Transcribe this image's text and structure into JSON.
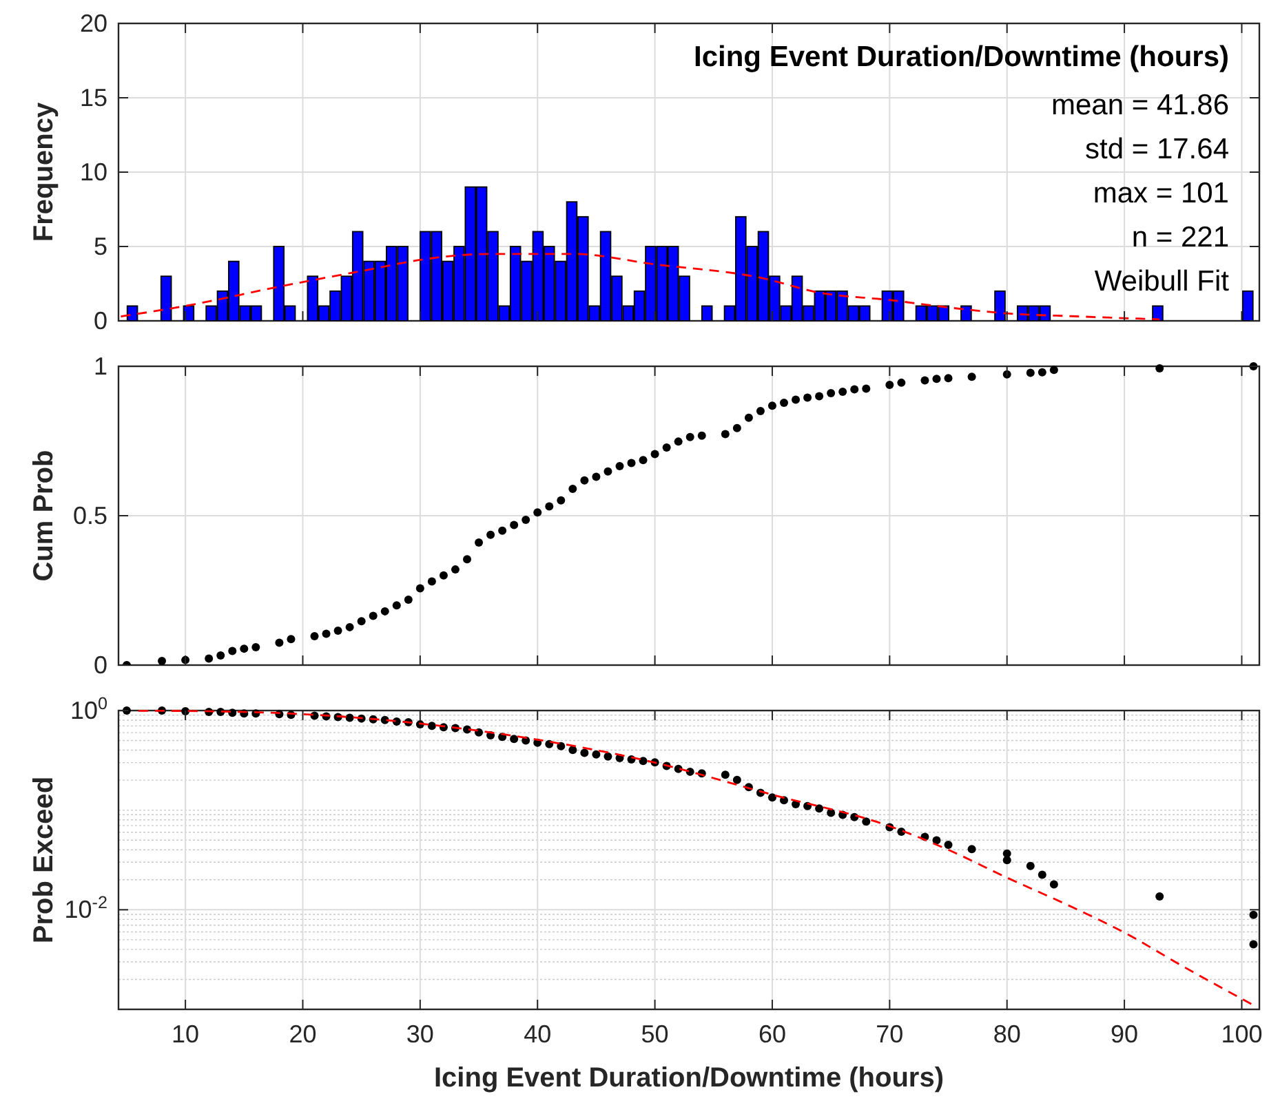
{
  "chart_data": [
    {
      "type": "histogram",
      "title": "Icing Event Duration/Downtime (hours)",
      "ylabel": "Frequency",
      "annotations": [
        "mean = 41.86",
        "std = 17.64",
        "max = 101",
        "n = 221",
        "Weibull Fit"
      ],
      "xlim": [
        4.3,
        101.5
      ],
      "xticks": [
        10,
        20,
        30,
        40,
        50,
        60,
        70,
        80,
        90,
        100
      ],
      "ylim": [
        0,
        20
      ],
      "yticks": [
        0,
        5,
        10,
        15,
        20
      ],
      "grid": true,
      "tick_labels": "y",
      "series": [
        {
          "color": "#0000ff",
          "bins": [
            5,
            5.96,
            6.92,
            7.88,
            8.84,
            9.8,
            10.76,
            11.72,
            12.68,
            13.64,
            14.6,
            15.56,
            16.52,
            17.48,
            18.44,
            19.4,
            20.36,
            21.32,
            22.28,
            23.24,
            24.2,
            25.16,
            26.12,
            27.08,
            28.04,
            29,
            29.96,
            30.92,
            31.88,
            32.84,
            33.8,
            34.76,
            35.72,
            36.68,
            37.64,
            38.6,
            39.56,
            40.52,
            41.48,
            42.44,
            43.4,
            44.36,
            45.32,
            46.28,
            47.24,
            48.2,
            49.16,
            50.12,
            51.08,
            52.04,
            53,
            53.96,
            54.92,
            55.88,
            56.84,
            57.8,
            58.76,
            59.72,
            60.68,
            61.64,
            62.6,
            63.56,
            64.52,
            65.48,
            66.44,
            67.4,
            68.36,
            69.32,
            70.28,
            71.24,
            72.2,
            73.16,
            74.12,
            75.08,
            76.04,
            77,
            77.96,
            78.92,
            79.88,
            80.84,
            81.8,
            82.76,
            83.72,
            84.68,
            85.64,
            86.6,
            87.56,
            88.52,
            89.48,
            90.44,
            91.4,
            92.36,
            93.32,
            94.28,
            95.24,
            96.2,
            97.16,
            98.12,
            99.08,
            100.04,
            101
          ],
          "values": [
            1,
            0,
            0,
            3,
            0,
            1,
            0,
            1,
            2,
            4,
            1,
            1,
            0,
            5,
            1,
            0,
            3,
            1,
            2,
            3,
            6,
            4,
            4,
            5,
            5,
            0,
            6,
            6,
            4,
            5,
            9,
            9,
            6,
            1,
            5,
            4,
            6,
            5,
            4,
            8,
            7,
            1,
            6,
            3,
            1,
            2,
            5,
            5,
            5,
            3,
            0,
            1,
            0,
            1,
            7,
            5,
            6,
            3,
            1,
            3,
            1,
            2,
            2,
            2,
            1,
            1,
            0,
            2,
            2,
            0,
            1,
            1,
            1,
            0,
            1,
            0,
            0,
            2,
            0,
            1,
            1,
            1,
            0,
            0,
            0,
            0,
            0,
            0,
            0,
            0,
            0,
            1,
            0,
            0,
            0,
            0,
            0,
            0,
            0,
            2
          ]
        },
        {
          "type": "line",
          "color": "#ff0000",
          "line_style": "dashed",
          "x": [
            4.5,
            10,
            18,
            26,
            30,
            36,
            43,
            50,
            59,
            64,
            70,
            75,
            80,
            86,
            93
          ],
          "values": [
            0.3,
            1,
            2.3,
            3.5,
            4.1,
            4.5,
            4.5,
            3.8,
            2.9,
            1.9,
            1.4,
            0.9,
            0.5,
            0.3,
            0.1
          ]
        }
      ]
    },
    {
      "type": "scatter",
      "ylabel": "Cum Prob",
      "xlim": [
        4.3,
        101.5
      ],
      "xticks": [
        10,
        20,
        30,
        40,
        50,
        60,
        70,
        80,
        90,
        100
      ],
      "ylim": [
        0,
        1
      ],
      "yticks": [
        0,
        0.5,
        1
      ],
      "grid": true,
      "tick_labels": "y",
      "series": [
        {
          "marker": "circle",
          "color": "#000000",
          "x": [
            5,
            8,
            10,
            12,
            13,
            14,
            15,
            16,
            18,
            19,
            21,
            22,
            23,
            24,
            25,
            26,
            27,
            28,
            29,
            30,
            31,
            32,
            33,
            34,
            35,
            36,
            37,
            38,
            39,
            40,
            41,
            42,
            43,
            44,
            45,
            46,
            47,
            48,
            49,
            50,
            51,
            52,
            53,
            54,
            56,
            57,
            58,
            59,
            60,
            61,
            62,
            63,
            64,
            65,
            66,
            67,
            68,
            70,
            71,
            73,
            74,
            75,
            77,
            80,
            82,
            83,
            84,
            93,
            101
          ],
          "values": [
            0,
            0.014,
            0.017,
            0.022,
            0.032,
            0.047,
            0.055,
            0.06,
            0.075,
            0.087,
            0.097,
            0.105,
            0.115,
            0.127,
            0.147,
            0.165,
            0.18,
            0.2,
            0.219,
            0.257,
            0.28,
            0.3,
            0.32,
            0.354,
            0.41,
            0.436,
            0.45,
            0.469,
            0.486,
            0.511,
            0.531,
            0.551,
            0.59,
            0.618,
            0.63,
            0.648,
            0.666,
            0.676,
            0.686,
            0.706,
            0.728,
            0.748,
            0.763,
            0.768,
            0.773,
            0.793,
            0.828,
            0.85,
            0.868,
            0.878,
            0.888,
            0.895,
            0.9,
            0.91,
            0.915,
            0.923,
            0.925,
            0.938,
            0.945,
            0.953,
            0.958,
            0.96,
            0.965,
            0.973,
            0.978,
            0.98,
            0.988,
            0.993,
            1
          ]
        }
      ]
    },
    {
      "type": "scatter",
      "xlabel": "Icing Event Duration/Downtime (hours)",
      "ylabel": "Prob Exceed",
      "xlim": [
        4.3,
        101.5
      ],
      "xticks": [
        10,
        20,
        30,
        40,
        50,
        60,
        70,
        80,
        90,
        100
      ],
      "ylim": [
        0.001,
        1
      ],
      "yticks": [
        {
          "value": 0.01,
          "label": "10$^{-2}$"
        },
        {
          "value": 1,
          "label": "10$^{0}$"
        }
      ],
      "log": "y",
      "grid": true,
      "series": [
        {
          "marker": "circle",
          "color": "#000000",
          "x": [
            5,
            8,
            10,
            12,
            13,
            14,
            15,
            16,
            18,
            19,
            21,
            22,
            23,
            24,
            25,
            26,
            27,
            28,
            29,
            30,
            31,
            32,
            33,
            34,
            35,
            36,
            37,
            38,
            39,
            40,
            41,
            42,
            43,
            44,
            45,
            46,
            47,
            48,
            49,
            50,
            51,
            52,
            53,
            54,
            56,
            57,
            58,
            59,
            60,
            61,
            62,
            63,
            64,
            65,
            66,
            67,
            68,
            70,
            71,
            73,
            74,
            75,
            77,
            80,
            80,
            82,
            83,
            84,
            93,
            101,
            101
          ],
          "values": [
            1,
            1,
            0.983,
            0.967,
            0.967,
            0.951,
            0.935,
            0.935,
            0.919,
            0.904,
            0.889,
            0.874,
            0.859,
            0.845,
            0.831,
            0.817,
            0.803,
            0.776,
            0.763,
            0.726,
            0.702,
            0.679,
            0.667,
            0.645,
            0.603,
            0.564,
            0.545,
            0.518,
            0.501,
            0.476,
            0.46,
            0.438,
            0.402,
            0.376,
            0.363,
            0.345,
            0.334,
            0.323,
            0.312,
            0.302,
            0.278,
            0.26,
            0.243,
            0.234,
            0.227,
            0.201,
            0.17,
            0.149,
            0.134,
            0.126,
            0.115,
            0.11,
            0.104,
            0.094,
            0.0896,
            0.0852,
            0.0769,
            0.0673,
            0.0608,
            0.054,
            0.0497,
            0.0449,
            0.0406,
            0.0367,
            0.0315,
            0.0275,
            0.0225,
            0.018,
            0.0136,
            0.0089,
            0.0045
          ]
        },
        {
          "type": "line",
          "color": "#ff0000",
          "line_style": "dashed",
          "x": [
            6,
            10,
            20,
            30,
            40,
            50,
            60,
            70,
            75,
            80,
            85,
            90,
            95,
            101
          ],
          "values": [
            0.995,
            0.99,
            0.92,
            0.74,
            0.51,
            0.3,
            0.143,
            0.069,
            0.04,
            0.021,
            0.0114,
            0.0059,
            0.0027,
            0.0011
          ]
        }
      ]
    }
  ]
}
